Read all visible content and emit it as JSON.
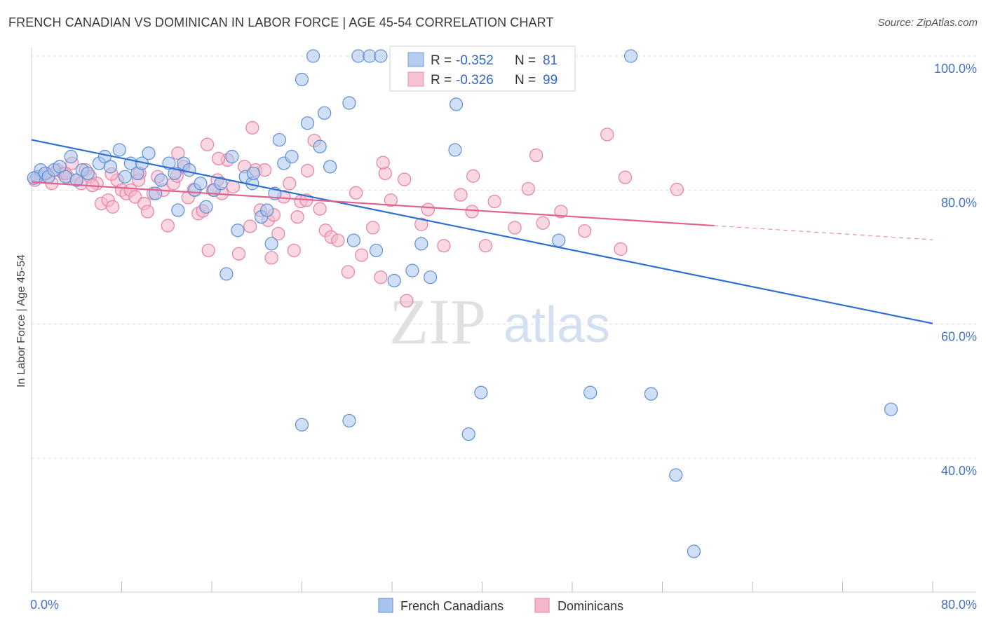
{
  "header": {
    "title": "FRENCH CANADIAN VS DOMINICAN IN LABOR FORCE | AGE 45-54 CORRELATION CHART",
    "source": "Source: ZipAtlas.com"
  },
  "watermark": {
    "zip": "ZIP",
    "atlas": "atlas"
  },
  "colors": {
    "blue_fill": "#a9c4ec",
    "blue_stroke": "#5b8fd6",
    "blue_line": "#2f6fd0",
    "pink_fill": "#f5b8cb",
    "pink_stroke": "#e87fa0",
    "pink_line": "#e0628e",
    "tick": "#4472c4",
    "grid": "#dddddd"
  },
  "legend_box": {
    "rows": [
      {
        "r_label": "R =",
        "r_value": "-0.352",
        "n_label": "N =",
        "n_value": "81"
      },
      {
        "r_label": "R =",
        "r_value": "-0.326",
        "n_label": "N =",
        "n_value": "99"
      }
    ]
  },
  "bottom_legend": [
    "French Canadians",
    "Dominicans"
  ],
  "chart_data": {
    "type": "scatter",
    "title": "FRENCH CANADIAN VS DOMINICAN IN LABOR FORCE | AGE 45-54 CORRELATION CHART",
    "xlabel": "",
    "ylabel": "In Labor Force | Age 45-54",
    "xlim": [
      0,
      80
    ],
    "ylim": [
      20,
      100
    ],
    "x_tick_labels": [
      "0.0%",
      "80.0%"
    ],
    "y_ticks": [
      100,
      80,
      60,
      40
    ],
    "y_tick_labels": [
      "100.0%",
      "80.0%",
      "60.0%",
      "40.0%"
    ],
    "grid": "horizontal dashed",
    "legend_placement": "top-center and bottom",
    "series": [
      {
        "name": "French Canadians",
        "r": -0.352,
        "n": 81,
        "trend": {
          "x": [
            0,
            80
          ],
          "y": [
            87.5,
            60.1
          ]
        },
        "points": [
          [
            0.5,
            82
          ],
          [
            0.8,
            83
          ],
          [
            1.2,
            82.5
          ],
          [
            1.5,
            82
          ],
          [
            2,
            83
          ],
          [
            2.5,
            83.5
          ],
          [
            3,
            82
          ],
          [
            3.5,
            85
          ],
          [
            4,
            81.5
          ],
          [
            4.5,
            83
          ],
          [
            5,
            82.5
          ],
          [
            6,
            84
          ],
          [
            6.5,
            85
          ],
          [
            7,
            83.5
          ],
          [
            7.8,
            86
          ],
          [
            8.3,
            82
          ],
          [
            8.8,
            84
          ],
          [
            9.4,
            82.5
          ],
          [
            9.8,
            84
          ],
          [
            10.4,
            85.5
          ],
          [
            11,
            79.5
          ],
          [
            11.5,
            81.5
          ],
          [
            12.2,
            84
          ],
          [
            12.7,
            82.5
          ],
          [
            13,
            77
          ],
          [
            13.5,
            84
          ],
          [
            14,
            83
          ],
          [
            14.5,
            80
          ],
          [
            15,
            81
          ],
          [
            15.5,
            77.5
          ],
          [
            16.2,
            80
          ],
          [
            16.8,
            81
          ],
          [
            17.3,
            67.5
          ],
          [
            17.8,
            85
          ],
          [
            18.3,
            74
          ],
          [
            19,
            82
          ],
          [
            19.6,
            81
          ],
          [
            19.7,
            82.5
          ],
          [
            20.4,
            76
          ],
          [
            20.9,
            77
          ],
          [
            21.3,
            72
          ],
          [
            21.6,
            79.5
          ],
          [
            22,
            87.5
          ],
          [
            22.4,
            84
          ],
          [
            23.1,
            85
          ],
          [
            24,
            96.5
          ],
          [
            24.5,
            90
          ],
          [
            25,
            100
          ],
          [
            25.6,
            86.5
          ],
          [
            26,
            91.5
          ],
          [
            26.5,
            83.5
          ],
          [
            28.2,
            93
          ],
          [
            28.6,
            72.5
          ],
          [
            29,
            100
          ],
          [
            30,
            100
          ],
          [
            30.6,
            71
          ],
          [
            31,
            100
          ],
          [
            32.2,
            66.5
          ],
          [
            32.5,
            100
          ],
          [
            33.2,
            100
          ],
          [
            33.8,
            68
          ],
          [
            34.6,
            72
          ],
          [
            35.4,
            67
          ],
          [
            37.2,
            100
          ],
          [
            36.3,
            100
          ],
          [
            37.6,
            86
          ],
          [
            37.7,
            92.8
          ],
          [
            44,
            100
          ],
          [
            45.2,
            100
          ],
          [
            46.8,
            72.5
          ],
          [
            53.2,
            100
          ],
          [
            24,
            45
          ],
          [
            28.2,
            45.6
          ],
          [
            38.8,
            43.6
          ],
          [
            39.9,
            49.8
          ],
          [
            49.6,
            49.8
          ],
          [
            55,
            49.6
          ],
          [
            76.3,
            47.3
          ],
          [
            57.2,
            37.5
          ],
          [
            58.8,
            26.1
          ],
          [
            0.2,
            81.8
          ]
        ]
      },
      {
        "name": "Dominicans",
        "r": -0.326,
        "n": 99,
        "trend": {
          "x": [
            0,
            60.6
          ],
          "y": [
            81.2,
            74.7
          ]
        },
        "trend_dashed": {
          "x": [
            60.6,
            80
          ],
          "y": [
            74.7,
            72.6
          ]
        },
        "points": [
          [
            0.3,
            81.5
          ],
          [
            0.8,
            82
          ],
          [
            1.3,
            82.5
          ],
          [
            1.8,
            81
          ],
          [
            2.3,
            83
          ],
          [
            2.8,
            82.5
          ],
          [
            3.2,
            82
          ],
          [
            3.6,
            84
          ],
          [
            4,
            81.5
          ],
          [
            4.4,
            81
          ],
          [
            4.8,
            83
          ],
          [
            5.2,
            82
          ],
          [
            5.8,
            81
          ],
          [
            6.2,
            78
          ],
          [
            6.8,
            78.5
          ],
          [
            7.2,
            77.5
          ],
          [
            7.6,
            81.5
          ],
          [
            8,
            80
          ],
          [
            8.4,
            79.5
          ],
          [
            8.8,
            80
          ],
          [
            9.2,
            79
          ],
          [
            9.6,
            82.5
          ],
          [
            10,
            78
          ],
          [
            10.3,
            76.8
          ],
          [
            10.8,
            79.5
          ],
          [
            11.2,
            82
          ],
          [
            11.7,
            80
          ],
          [
            12.1,
            74.7
          ],
          [
            12.6,
            81
          ],
          [
            13,
            85.5
          ],
          [
            13.5,
            83.5
          ],
          [
            13.9,
            78.9
          ],
          [
            14.4,
            80.1
          ],
          [
            14.8,
            76.5
          ],
          [
            15.2,
            76.9
          ],
          [
            15.7,
            71
          ],
          [
            16.1,
            80
          ],
          [
            16.5,
            81.5
          ],
          [
            16.9,
            79.5
          ],
          [
            17.4,
            84.5
          ],
          [
            17.9,
            80.5
          ],
          [
            18.4,
            70.5
          ],
          [
            18.9,
            83.5
          ],
          [
            19.4,
            74.6
          ],
          [
            19.9,
            83
          ],
          [
            20.3,
            77
          ],
          [
            20.7,
            83
          ],
          [
            21,
            75.5
          ],
          [
            21.5,
            76.3
          ],
          [
            21.9,
            73.5
          ],
          [
            22.4,
            79
          ],
          [
            22.9,
            81
          ],
          [
            23.3,
            71
          ],
          [
            23.9,
            78.3
          ],
          [
            24.5,
            82.9
          ],
          [
            25.1,
            87.4
          ],
          [
            25.6,
            77.2
          ],
          [
            26.1,
            74
          ],
          [
            26.6,
            73
          ],
          [
            27.2,
            72.5
          ],
          [
            28.1,
            67.8
          ],
          [
            28.8,
            79.6
          ],
          [
            29.3,
            70.3
          ],
          [
            30.3,
            74.4
          ],
          [
            31,
            67
          ],
          [
            31.4,
            82.5
          ],
          [
            31.9,
            78.5
          ],
          [
            33.1,
            81.6
          ],
          [
            34.6,
            74.9
          ],
          [
            35.2,
            77.1
          ],
          [
            36.6,
            71.7
          ],
          [
            38.1,
            79.3
          ],
          [
            39.1,
            76.8
          ],
          [
            40.3,
            71.7
          ],
          [
            41.1,
            78.3
          ],
          [
            42.9,
            74.4
          ],
          [
            44.1,
            80.2
          ],
          [
            44.8,
            85.2
          ],
          [
            45.4,
            75.1
          ],
          [
            47,
            76.8
          ],
          [
            49.1,
            73.9
          ],
          [
            51.1,
            88.3
          ],
          [
            52.3,
            71.2
          ],
          [
            52.7,
            81.9
          ],
          [
            57.3,
            80.1
          ],
          [
            19.6,
            89.3
          ],
          [
            15.6,
            86.8
          ],
          [
            16.6,
            84.7
          ],
          [
            7.1,
            82.4
          ],
          [
            3,
            82.5
          ],
          [
            5.4,
            80.7
          ],
          [
            9.5,
            81.5
          ],
          [
            12.9,
            82.1
          ],
          [
            24.4,
            78.5
          ],
          [
            31.2,
            84.1
          ],
          [
            39.2,
            82.1
          ],
          [
            21.3,
            69.9
          ],
          [
            23.6,
            76
          ],
          [
            33.3,
            63.5
          ]
        ]
      }
    ]
  }
}
